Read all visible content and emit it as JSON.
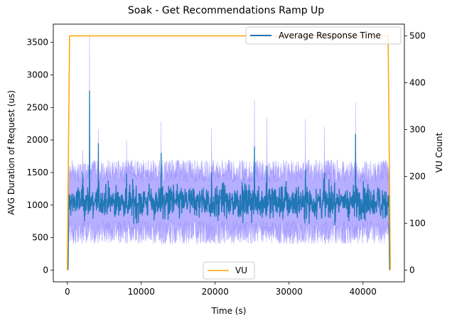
{
  "chart_data": {
    "type": "line",
    "title": "Soak - Get Recommendations Ramp Up",
    "xlabel": "Time (s)",
    "ylabel": "AVG Duration of Request (us)",
    "y2label": "VU Count",
    "xlim": [
      -1900,
      45600
    ],
    "ylim": [
      -180,
      3780
    ],
    "y2lim": [
      -25,
      525
    ],
    "x_ticks": [
      0,
      10000,
      20000,
      30000,
      40000
    ],
    "y_ticks": [
      0,
      500,
      1000,
      1500,
      2000,
      2500,
      3000,
      3500
    ],
    "y2_ticks": [
      0,
      100,
      200,
      300,
      400,
      500
    ],
    "grid": false,
    "series": [
      {
        "name": "Average Response Time",
        "axis": "left",
        "color": "#1f77b4",
        "band_color": "#b2aaff",
        "band_color_dark": "#6a5cff",
        "time_range": [
          100,
          43600
        ],
        "typical_mean": 1050,
        "typical_range": [
          700,
          1400
        ],
        "band_typical_range": [
          500,
          1800
        ],
        "spikes": [
          {
            "x": 3000,
            "y": 2760,
            "band_y": 3620
          },
          {
            "x": 4200,
            "y": 1950,
            "band_y": 2160
          },
          {
            "x": 2100,
            "y": 1500,
            "band_y": 1850
          },
          {
            "x": 12700,
            "y": 1800,
            "band_y": 2280
          },
          {
            "x": 25300,
            "y": 1900,
            "band_y": 2620
          },
          {
            "x": 39000,
            "y": 2090,
            "band_y": 2580
          },
          {
            "x": 27000,
            "y": 1600,
            "band_y": 2350
          },
          {
            "x": 32200,
            "y": 1550,
            "band_y": 2320
          },
          {
            "x": 19500,
            "y": 1500,
            "band_y": 2180
          },
          {
            "x": 34800,
            "y": 1500,
            "band_y": 2200
          },
          {
            "x": 8000,
            "y": 1480,
            "band_y": 2000
          }
        ],
        "legend": "upper right"
      },
      {
        "name": "VU",
        "axis": "right",
        "color": "#ffa500",
        "x": [
          0,
          300,
          43400,
          43700
        ],
        "y": [
          0,
          500,
          500,
          0
        ],
        "legend": "lower center"
      }
    ]
  }
}
